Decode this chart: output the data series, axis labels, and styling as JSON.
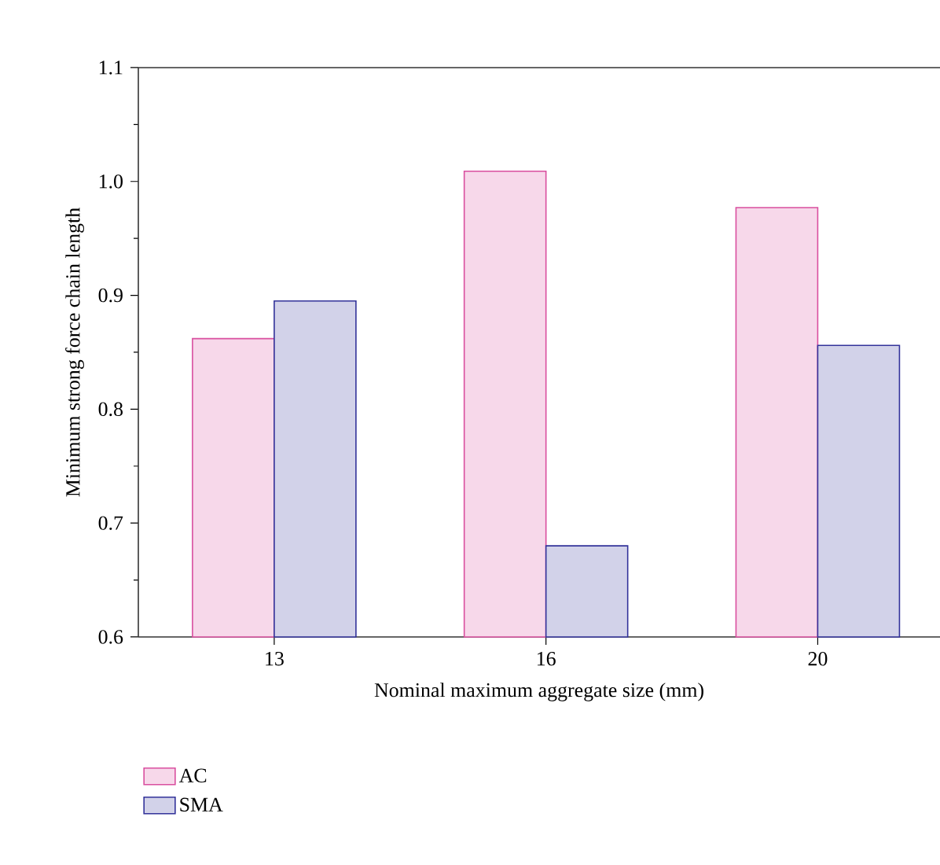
{
  "chart_data": {
    "type": "bar",
    "xlabel": "Nominal maximum aggregate size (mm)",
    "ylabel": "Minimum strong force chain length",
    "categories": [
      "13",
      "16",
      "20"
    ],
    "series": [
      {
        "name": "AC",
        "color": "#d94f9f",
        "values": [
          0.862,
          1.009,
          0.977
        ]
      },
      {
        "name": "SMA",
        "color": "#33339a",
        "values": [
          0.895,
          0.68,
          0.856
        ]
      }
    ],
    "ylim": [
      0.6,
      1.1
    ],
    "yticks": [
      0.6,
      0.7,
      0.8,
      0.9,
      {
        "value": 1.0,
        "label": "1.0"
      },
      1.1
    ],
    "grid": false,
    "legend": "bottom left"
  }
}
